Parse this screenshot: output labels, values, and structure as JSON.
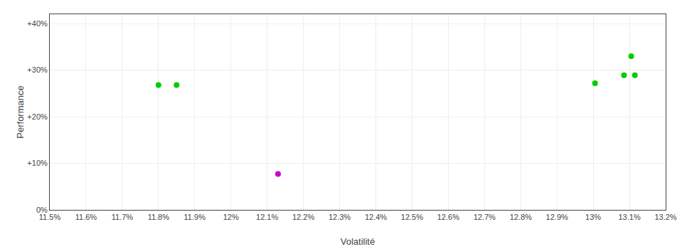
{
  "chart_data": {
    "type": "scatter",
    "xlabel": "Volatilité",
    "ylabel": "Performance",
    "x": [
      0.118,
      0.1185,
      0.1213,
      0.13005,
      0.13085,
      0.13115,
      0.13105
    ],
    "values": [
      0.268,
      0.268,
      0.077,
      0.272,
      0.289,
      0.289,
      0.33
    ],
    "colors": [
      "#00cc00",
      "#00cc00",
      "#cc00cc",
      "#00cc00",
      "#00cc00",
      "#00cc00",
      "#00cc00"
    ],
    "xlim": [
      0.115,
      0.132
    ],
    "ylim": [
      0.0,
      0.42
    ],
    "xticks": [
      {
        "value": 0.115,
        "label": "11.5%"
      },
      {
        "value": 0.116,
        "label": "11.6%"
      },
      {
        "value": 0.117,
        "label": "11.7%"
      },
      {
        "value": 0.118,
        "label": "11.8%"
      },
      {
        "value": 0.119,
        "label": "11.9%"
      },
      {
        "value": 0.12,
        "label": "12%"
      },
      {
        "value": 0.121,
        "label": "12.1%"
      },
      {
        "value": 0.122,
        "label": "12.2%"
      },
      {
        "value": 0.123,
        "label": "12.3%"
      },
      {
        "value": 0.124,
        "label": "12.4%"
      },
      {
        "value": 0.125,
        "label": "12.5%"
      },
      {
        "value": 0.126,
        "label": "12.6%"
      },
      {
        "value": 0.127,
        "label": "12.7%"
      },
      {
        "value": 0.128,
        "label": "12.8%"
      },
      {
        "value": 0.129,
        "label": "12.9%"
      },
      {
        "value": 0.13,
        "label": "13%"
      },
      {
        "value": 0.131,
        "label": "13.1%"
      },
      {
        "value": 0.132,
        "label": "13.2%"
      }
    ],
    "yticks": [
      {
        "value": 0.0,
        "label": "0%"
      },
      {
        "value": 0.1,
        "label": "+10%"
      },
      {
        "value": 0.2,
        "label": "+20%"
      },
      {
        "value": 0.3,
        "label": "+30%"
      },
      {
        "value": 0.4,
        "label": "+40%"
      }
    ],
    "grid": true
  }
}
